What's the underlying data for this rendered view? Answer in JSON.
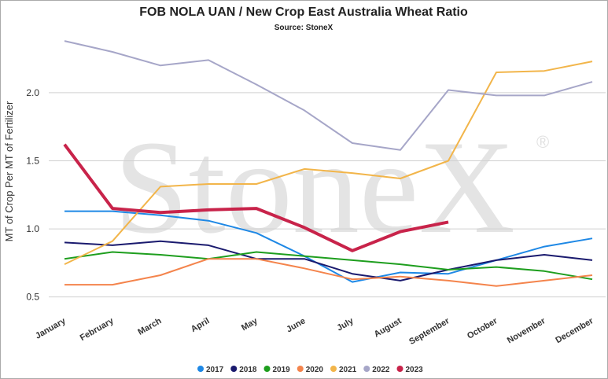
{
  "chart_data": {
    "type": "line",
    "title": "FOB NOLA UAN / New Crop East Australia Wheat Ratio",
    "subtitle": "Source: StoneX",
    "y_label": "MT of Crop Per MT of Fertilizer",
    "watermark": "StoneX",
    "watermark_symbol": "®",
    "categories": [
      "January",
      "February",
      "March",
      "April",
      "May",
      "June",
      "July",
      "August",
      "September",
      "October",
      "November",
      "December"
    ],
    "ylim": [
      0.4,
      2.45
    ],
    "yticks": [
      {
        "value": 0.5,
        "label": "0.5"
      },
      {
        "value": 1,
        "label": "1.0"
      },
      1.5,
      {
        "value": 2,
        "label": "2.0"
      }
    ],
    "grid": true,
    "legend": "bottom",
    "series": [
      {
        "name": "2017",
        "color": "#1e88e5",
        "line_width": 2,
        "values": [
          1.13,
          1.13,
          1.1,
          1.06,
          0.97,
          0.8,
          0.61,
          0.68,
          0.67,
          0.77,
          0.87,
          0.93
        ]
      },
      {
        "name": "2018",
        "color": "#1a1a6e",
        "line_width": 2,
        "values": [
          0.9,
          0.88,
          0.91,
          0.88,
          0.78,
          0.78,
          0.67,
          0.62,
          0.7,
          0.77,
          0.81,
          0.77
        ]
      },
      {
        "name": "2019",
        "color": "#1e9e1e",
        "line_width": 2,
        "values": [
          0.78,
          0.83,
          0.81,
          0.78,
          0.83,
          0.8,
          0.77,
          0.74,
          0.7,
          0.72,
          0.69,
          0.63
        ]
      },
      {
        "name": "2020",
        "color": "#f4844c",
        "line_width": 2,
        "values": [
          0.59,
          0.59,
          0.66,
          0.78,
          0.78,
          0.71,
          0.63,
          0.65,
          0.62,
          0.58,
          0.62,
          0.66
        ]
      },
      {
        "name": "2021",
        "color": "#f2b54a",
        "line_width": 2,
        "values": [
          0.74,
          0.91,
          1.31,
          1.33,
          1.33,
          1.44,
          1.41,
          1.37,
          1.5,
          2.15,
          2.16,
          2.23
        ]
      },
      {
        "name": "2022",
        "color": "#a6a6c8",
        "line_width": 2,
        "values": [
          2.38,
          2.3,
          2.2,
          2.24,
          2.06,
          1.87,
          1.63,
          1.58,
          2.02,
          1.98,
          1.98,
          2.08
        ]
      },
      {
        "name": "2023",
        "color": "#c8234a",
        "line_width": 4,
        "values": [
          1.62,
          1.15,
          1.12,
          1.14,
          1.15,
          1.01,
          0.84,
          0.98,
          1.05,
          null,
          null,
          null
        ]
      }
    ]
  }
}
